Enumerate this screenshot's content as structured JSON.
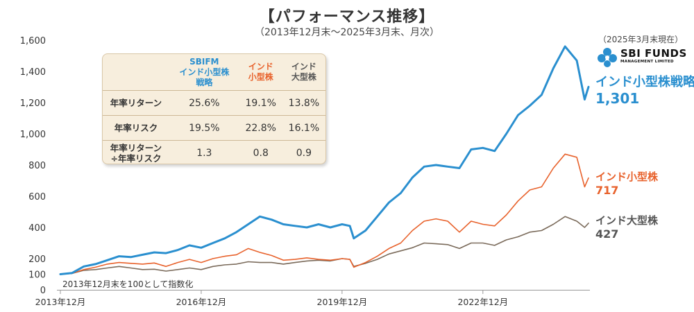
{
  "header": {
    "title": "【パフォーマンス推移】",
    "subtitle": "（2013年12月末〜2025年3月末、月次）",
    "as_of": "（2025年3月末現在）",
    "logo_main": "SBI FUNDS",
    "logo_sub": "MANAGEMENT LIMITED"
  },
  "note": "2013年12月末を100として指数化",
  "stats_table": {
    "headers": [
      [
        "SBIFM",
        "インド小型株",
        "戦略"
      ],
      [
        "インド",
        "小型株"
      ],
      [
        "インド",
        "大型株"
      ]
    ],
    "rows": [
      {
        "label": [
          "年率リターン"
        ],
        "values": [
          "25.6%",
          "19.1%",
          "13.8%"
        ]
      },
      {
        "label": [
          "年率リスク"
        ],
        "values": [
          "19.5%",
          "22.8%",
          "16.1%"
        ]
      },
      {
        "label": [
          "年率リターン",
          "÷年率リスク"
        ],
        "values": [
          "1.3",
          "0.8",
          "0.9"
        ]
      }
    ]
  },
  "end_labels": {
    "sbi": {
      "name": "インド小型株戦略",
      "value": "1,301"
    },
    "small": {
      "name": "インド小型株",
      "value": "717"
    },
    "large": {
      "name": "インド大型株",
      "value": "427"
    }
  },
  "chart_data": {
    "type": "line",
    "title": "【パフォーマンス推移】",
    "subtitle": "（2013年12月末〜2025年3月末、月次）",
    "xlabel": "",
    "ylabel": "",
    "x_range": [
      "2013-12",
      "2025-03"
    ],
    "ylim": [
      0,
      1600
    ],
    "yticks": [
      0,
      100,
      200,
      400,
      600,
      800,
      1000,
      1200,
      1400,
      1600
    ],
    "ytick_labels": [
      "0",
      "100",
      "200",
      "400",
      "600",
      "800",
      "1,000",
      "1,200",
      "1,400",
      "1,600"
    ],
    "xticks": [
      "2013-12",
      "2016-12",
      "2019-12",
      "2022-12"
    ],
    "xtick_labels": [
      "2013年12月",
      "2016年12月",
      "2019年12月",
      "2022年12月"
    ],
    "grid": false,
    "series": [
      {
        "name": "インド小型株戦略",
        "color": "#2a8fcf",
        "points": [
          [
            "2013-12",
            100
          ],
          [
            "2014-03",
            108
          ],
          [
            "2014-06",
            150
          ],
          [
            "2014-09",
            165
          ],
          [
            "2014-12",
            190
          ],
          [
            "2015-03",
            215
          ],
          [
            "2015-06",
            210
          ],
          [
            "2015-09",
            225
          ],
          [
            "2015-12",
            240
          ],
          [
            "2016-03",
            235
          ],
          [
            "2016-06",
            255
          ],
          [
            "2016-09",
            285
          ],
          [
            "2016-12",
            270
          ],
          [
            "2017-03",
            300
          ],
          [
            "2017-06",
            330
          ],
          [
            "2017-09",
            370
          ],
          [
            "2017-12",
            420
          ],
          [
            "2018-03",
            470
          ],
          [
            "2018-06",
            450
          ],
          [
            "2018-09",
            420
          ],
          [
            "2018-12",
            410
          ],
          [
            "2019-03",
            400
          ],
          [
            "2019-06",
            420
          ],
          [
            "2019-09",
            400
          ],
          [
            "2019-12",
            420
          ],
          [
            "2020-02",
            410
          ],
          [
            "2020-03",
            330
          ],
          [
            "2020-06",
            380
          ],
          [
            "2020-09",
            470
          ],
          [
            "2020-12",
            560
          ],
          [
            "2021-03",
            620
          ],
          [
            "2021-06",
            720
          ],
          [
            "2021-09",
            790
          ],
          [
            "2021-12",
            800
          ],
          [
            "2022-03",
            790
          ],
          [
            "2022-06",
            780
          ],
          [
            "2022-09",
            900
          ],
          [
            "2022-12",
            910
          ],
          [
            "2023-03",
            890
          ],
          [
            "2023-06",
            1000
          ],
          [
            "2023-09",
            1120
          ],
          [
            "2023-12",
            1180
          ],
          [
            "2024-03",
            1250
          ],
          [
            "2024-06",
            1420
          ],
          [
            "2024-09",
            1560
          ],
          [
            "2024-12",
            1470
          ],
          [
            "2025-02",
            1220
          ],
          [
            "2025-03",
            1301
          ]
        ]
      },
      {
        "name": "インド小型株",
        "color": "#e8622c",
        "points": [
          [
            "2013-12",
            100
          ],
          [
            "2014-03",
            105
          ],
          [
            "2014-06",
            130
          ],
          [
            "2014-09",
            145
          ],
          [
            "2014-12",
            165
          ],
          [
            "2015-03",
            175
          ],
          [
            "2015-06",
            170
          ],
          [
            "2015-09",
            165
          ],
          [
            "2015-12",
            172
          ],
          [
            "2016-03",
            150
          ],
          [
            "2016-06",
            175
          ],
          [
            "2016-09",
            195
          ],
          [
            "2016-12",
            175
          ],
          [
            "2017-03",
            200
          ],
          [
            "2017-06",
            215
          ],
          [
            "2017-09",
            225
          ],
          [
            "2017-12",
            265
          ],
          [
            "2018-03",
            240
          ],
          [
            "2018-06",
            220
          ],
          [
            "2018-09",
            190
          ],
          [
            "2018-12",
            195
          ],
          [
            "2019-03",
            205
          ],
          [
            "2019-06",
            195
          ],
          [
            "2019-09",
            190
          ],
          [
            "2019-12",
            200
          ],
          [
            "2020-02",
            195
          ],
          [
            "2020-03",
            145
          ],
          [
            "2020-06",
            175
          ],
          [
            "2020-09",
            215
          ],
          [
            "2020-12",
            265
          ],
          [
            "2021-03",
            300
          ],
          [
            "2021-06",
            380
          ],
          [
            "2021-09",
            440
          ],
          [
            "2021-12",
            455
          ],
          [
            "2022-03",
            440
          ],
          [
            "2022-06",
            370
          ],
          [
            "2022-09",
            440
          ],
          [
            "2022-12",
            420
          ],
          [
            "2023-03",
            410
          ],
          [
            "2023-06",
            480
          ],
          [
            "2023-09",
            570
          ],
          [
            "2023-12",
            640
          ],
          [
            "2024-03",
            660
          ],
          [
            "2024-06",
            780
          ],
          [
            "2024-09",
            870
          ],
          [
            "2024-12",
            850
          ],
          [
            "2025-02",
            660
          ],
          [
            "2025-03",
            717
          ]
        ]
      },
      {
        "name": "インド大型株",
        "color": "#7a6a5a",
        "points": [
          [
            "2013-12",
            100
          ],
          [
            "2014-03",
            105
          ],
          [
            "2014-06",
            125
          ],
          [
            "2014-09",
            130
          ],
          [
            "2014-12",
            140
          ],
          [
            "2015-03",
            150
          ],
          [
            "2015-06",
            140
          ],
          [
            "2015-09",
            130
          ],
          [
            "2015-12",
            132
          ],
          [
            "2016-03",
            120
          ],
          [
            "2016-06",
            130
          ],
          [
            "2016-09",
            140
          ],
          [
            "2016-12",
            130
          ],
          [
            "2017-03",
            150
          ],
          [
            "2017-06",
            160
          ],
          [
            "2017-09",
            165
          ],
          [
            "2017-12",
            180
          ],
          [
            "2018-03",
            175
          ],
          [
            "2018-06",
            175
          ],
          [
            "2018-09",
            165
          ],
          [
            "2018-12",
            175
          ],
          [
            "2019-03",
            185
          ],
          [
            "2019-06",
            190
          ],
          [
            "2019-09",
            185
          ],
          [
            "2019-12",
            200
          ],
          [
            "2020-02",
            195
          ],
          [
            "2020-03",
            150
          ],
          [
            "2020-06",
            170
          ],
          [
            "2020-09",
            195
          ],
          [
            "2020-12",
            230
          ],
          [
            "2021-03",
            250
          ],
          [
            "2021-06",
            270
          ],
          [
            "2021-09",
            300
          ],
          [
            "2021-12",
            295
          ],
          [
            "2022-03",
            290
          ],
          [
            "2022-06",
            265
          ],
          [
            "2022-09",
            300
          ],
          [
            "2022-12",
            300
          ],
          [
            "2023-03",
            285
          ],
          [
            "2023-06",
            320
          ],
          [
            "2023-09",
            340
          ],
          [
            "2023-12",
            370
          ],
          [
            "2024-03",
            380
          ],
          [
            "2024-06",
            420
          ],
          [
            "2024-09",
            470
          ],
          [
            "2024-12",
            440
          ],
          [
            "2025-02",
            400
          ],
          [
            "2025-03",
            427
          ]
        ]
      }
    ]
  }
}
